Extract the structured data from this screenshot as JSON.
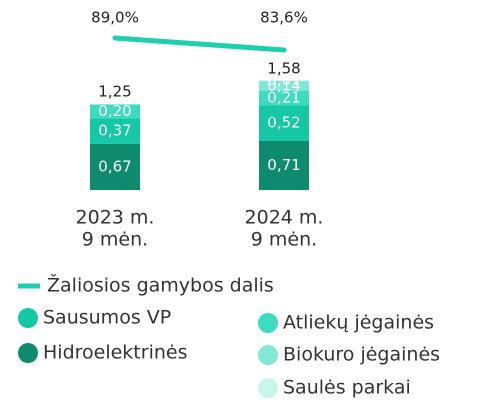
{
  "chart_data": {
    "type": "bar",
    "stacked": true,
    "categories": [
      [
        "2023 m.",
        "9 mėn."
      ],
      [
        "2024 m.",
        "9 mėn."
      ]
    ],
    "series": [
      {
        "name": "Hidroelektrinės",
        "color": "#0e8a6f",
        "values": [
          0.67,
          0.71
        ],
        "value_labels": [
          "0,67",
          "0,71"
        ]
      },
      {
        "name": "Sausumos VP",
        "color": "#14c8a5",
        "values": [
          0.37,
          0.52
        ],
        "value_labels": [
          "0,37",
          "0,52"
        ]
      },
      {
        "name": "Atliekų jėgainės",
        "color": "#3ddcbf",
        "values": [
          0.2,
          0.21
        ],
        "value_labels": [
          "0,20",
          "0,21"
        ]
      },
      {
        "name": "Biokuro jėgainės",
        "color": "#80e8d5",
        "values": [
          null,
          0.14
        ],
        "value_labels": [
          null,
          "0,14"
        ]
      },
      {
        "name": "Saulės parkai",
        "color": "#c8f5ec",
        "values": [
          null,
          0.01
        ],
        "value_labels": [
          null,
          "0,01"
        ]
      }
    ],
    "totals": [
      1.25,
      1.58
    ],
    "total_labels": [
      "1,25",
      "1,58"
    ],
    "line": {
      "type": "line",
      "name": "Žaliosios gamybos dalis",
      "color": "#1ecfae",
      "values": [
        89.0,
        83.6
      ],
      "value_labels": [
        "89,0%",
        "83,6%"
      ]
    }
  }
}
